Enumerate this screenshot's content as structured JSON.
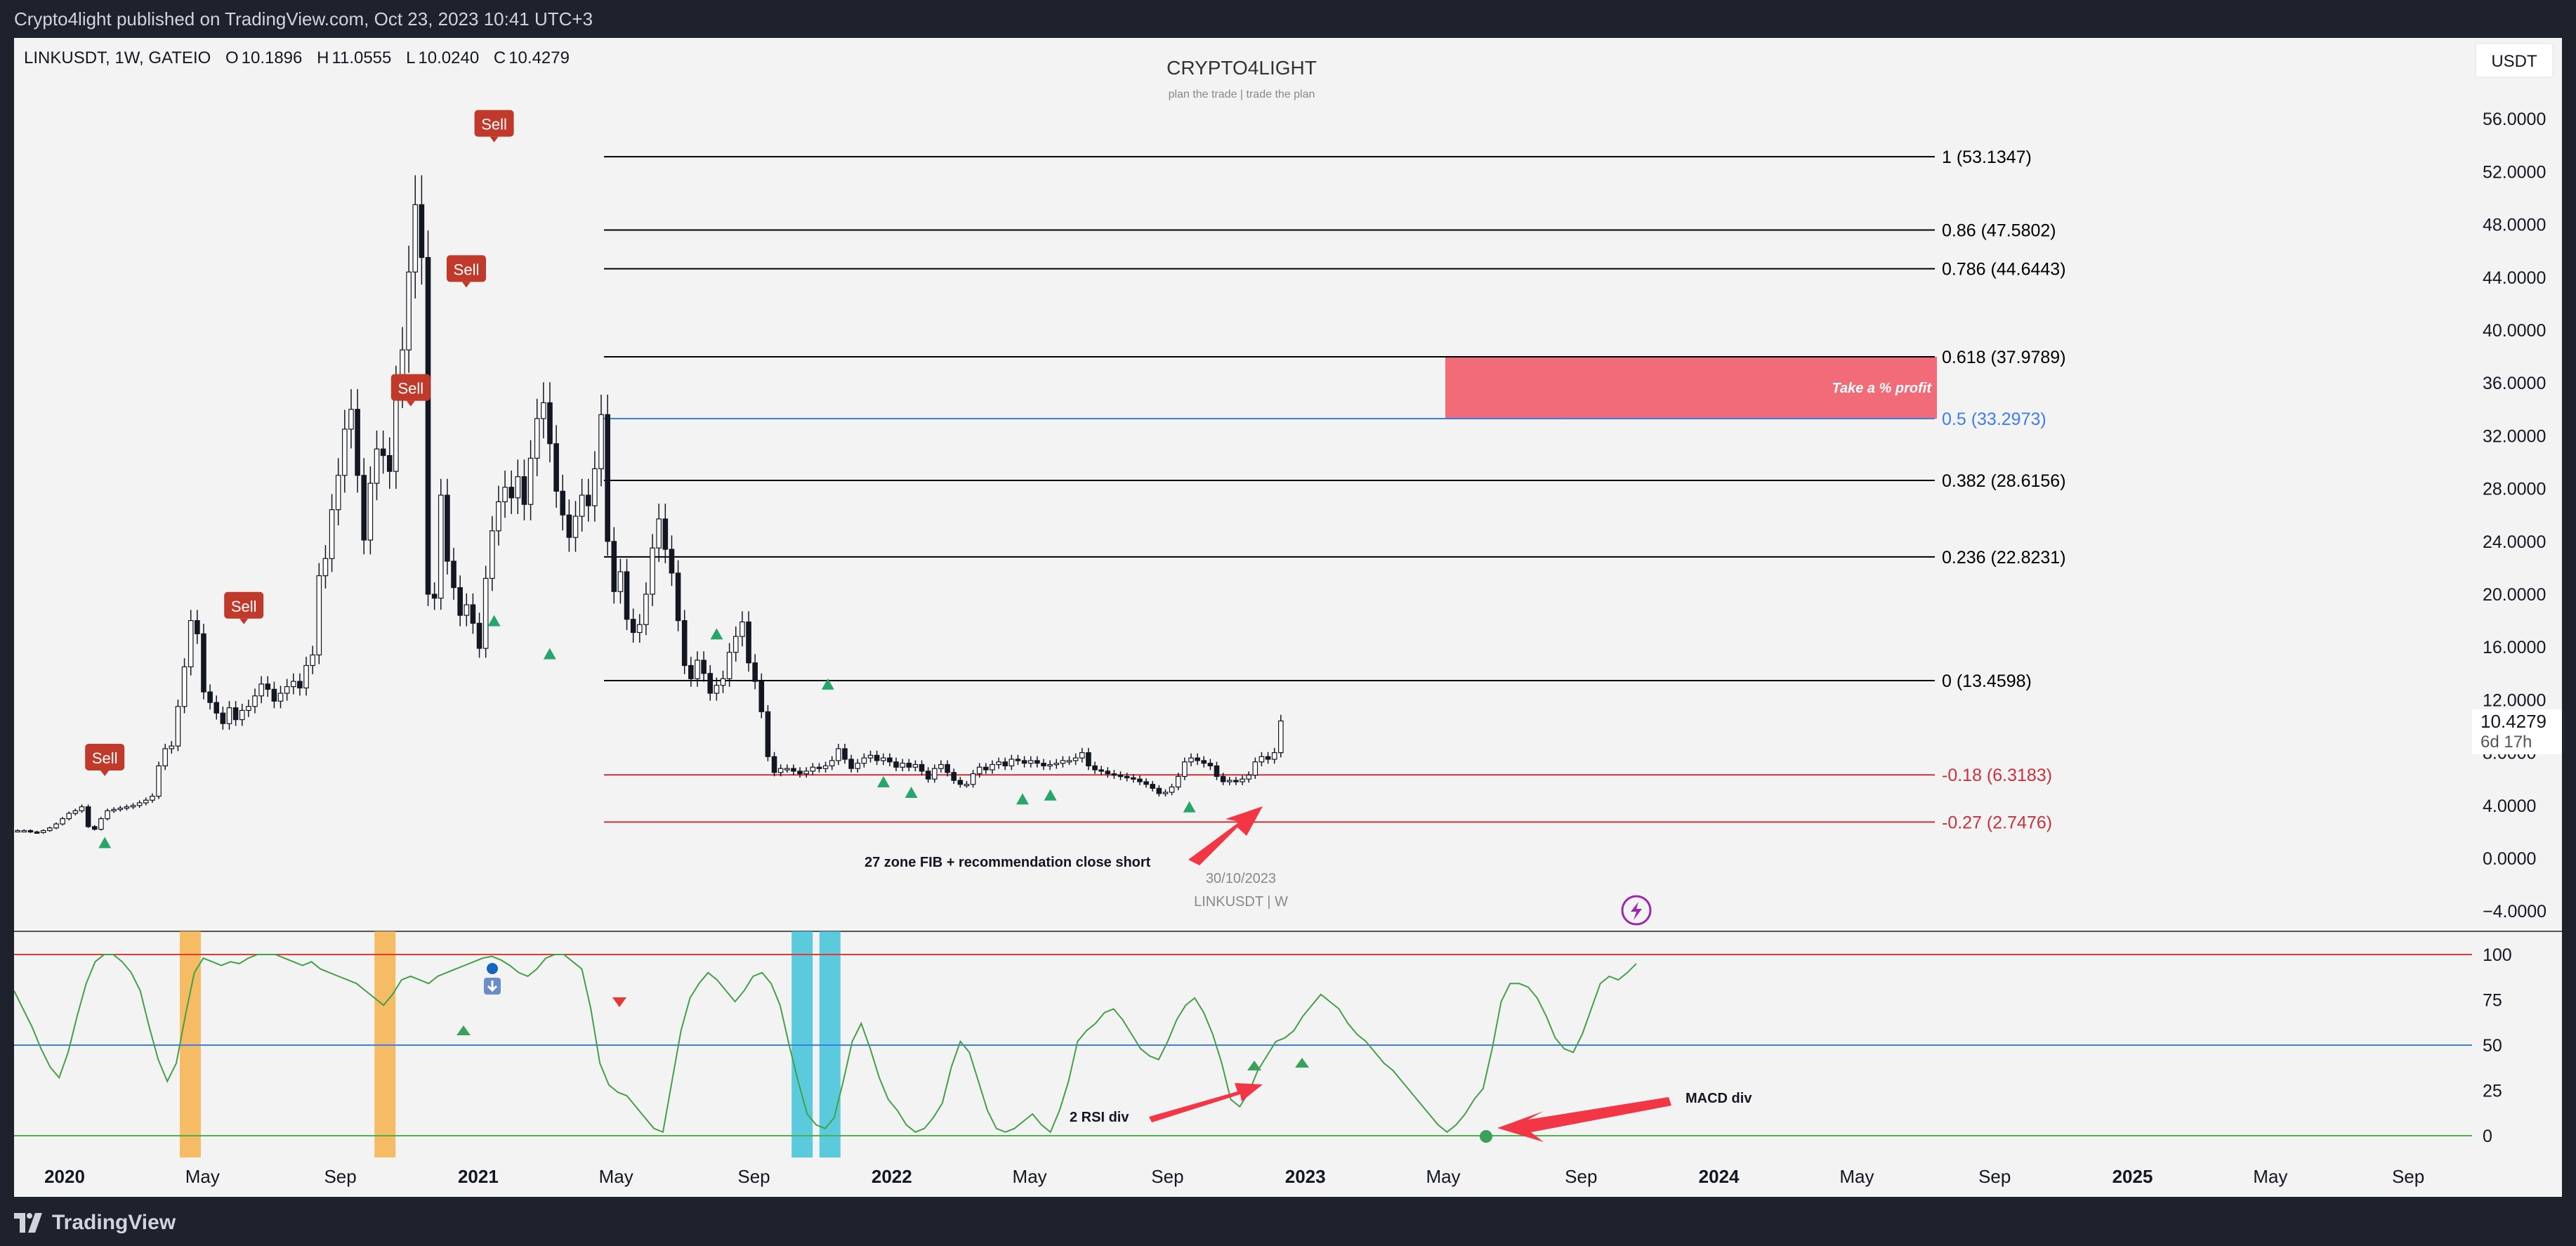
{
  "header": {
    "published": "Crypto4light published on TradingView.com, Oct 23, 2023 10:41 UTC+3"
  },
  "footer": {
    "brand": "TradingView"
  },
  "chart_data": [
    {
      "type": "candlestick",
      "symbol": "LINKUSDT, 1W, GATEIO",
      "ohlc": {
        "O_label": "O",
        "O": "10.1896",
        "H_label": "H",
        "H": "11.0555",
        "L_label": "L",
        "L": "10.0240",
        "C_label": "C",
        "C": "10.4279"
      },
      "title": "CRYPTO4LIGHT",
      "subtitle": "plan the trade | trade the plan",
      "currency_badge": "USDT",
      "y_ticks": [
        "56.0000",
        "52.0000",
        "48.0000",
        "44.0000",
        "40.0000",
        "36.0000",
        "32.0000",
        "28.0000",
        "24.0000",
        "20.0000",
        "16.0000",
        "12.0000",
        "8.0000",
        "4.0000",
        "0.0000",
        "−4.0000"
      ],
      "y_tick_values": [
        56,
        52,
        48,
        44,
        40,
        36,
        32,
        28,
        24,
        20,
        16,
        12,
        8,
        4,
        0,
        -4
      ],
      "last_price": "10.4279",
      "countdown": "6d 17h",
      "fib_levels": [
        {
          "label": "1 (53.1347)",
          "value": 53.1347,
          "color": "#000000"
        },
        {
          "label": "0.86 (47.5802)",
          "value": 47.5802,
          "color": "#000000"
        },
        {
          "label": "0.786 (44.6443)",
          "value": 44.6443,
          "color": "#000000"
        },
        {
          "label": "0.618 (37.9789)",
          "value": 37.9789,
          "color": "#000000"
        },
        {
          "label": "0.5 (33.2973)",
          "value": 33.2973,
          "color": "#3d7df0"
        },
        {
          "label": "0.382 (28.6156)",
          "value": 28.6156,
          "color": "#000000"
        },
        {
          "label": "0.236 (22.8231)",
          "value": 22.8231,
          "color": "#000000"
        },
        {
          "label": "0 (13.4598)",
          "value": 13.4598,
          "color": "#000000"
        },
        {
          "label": "-0.18 (6.3183)",
          "value": 6.3183,
          "color": "#c7323b"
        },
        {
          "label": "-0.27 (2.7476)",
          "value": 2.7476,
          "color": "#c7323b"
        }
      ],
      "profit_zone": {
        "label": "Take a % profit",
        "from": 33.2973,
        "to": 37.9789,
        "color": "#f26b78"
      },
      "annotations": {
        "fib_note": "27 zone FIB + recommendation close short",
        "date_label": "30/10/2023",
        "watermark": "LINKUSDT | W",
        "rsi_note": "2 RSI div",
        "macd_note": "MACD div"
      },
      "sell_label": "Sell",
      "sell_signals": [
        {
          "x": "2020-03",
          "price": 7.5
        },
        {
          "x": "2020-08",
          "price": 19.0
        },
        {
          "x": "2021-02",
          "price": 35.5
        },
        {
          "x": "2021-04",
          "price": 44.5
        },
        {
          "x": "2021-05",
          "price": 55.5
        }
      ],
      "buy_signals": [
        {
          "x": "2020-03",
          "price": 1.2
        },
        {
          "x": "2021-05",
          "price": 18.0
        },
        {
          "x": "2021-07",
          "price": 15.5
        },
        {
          "x": "2022-01",
          "price": 17.0
        },
        {
          "x": "2022-05",
          "price": 13.2
        },
        {
          "x": "2022-07",
          "price": 5.8
        },
        {
          "x": "2022-08",
          "price": 5.0
        },
        {
          "x": "2022-12",
          "price": 4.5
        },
        {
          "x": "2023-01",
          "price": 4.8
        },
        {
          "x": "2023-06",
          "price": 3.9
        }
      ],
      "weekly_close": [
        2.1,
        2.1,
        2.0,
        1.95,
        2.1,
        2.3,
        2.6,
        3.0,
        3.4,
        3.6,
        3.9,
        2.4,
        2.2,
        3.0,
        3.6,
        3.7,
        3.8,
        3.9,
        4.0,
        4.2,
        4.4,
        4.7,
        7.0,
        8.3,
        8.5,
        11.5,
        14.5,
        18.0,
        17.0,
        12.6,
        11.8,
        11.0,
        10.2,
        11.4,
        10.5,
        11.2,
        11.5,
        12.3,
        13.2,
        12.8,
        11.9,
        12.5,
        13.0,
        13.4,
        12.9,
        14.6,
        15.4,
        21.4,
        22.7,
        26.4,
        29.0,
        32.5,
        34.0,
        29.0,
        24.1,
        28.4,
        31.0,
        30.5,
        29.3,
        35.7,
        38.5,
        44.4,
        49.5,
        45.5,
        20.0,
        19.7,
        27.5,
        22.5,
        20.5,
        18.4,
        19.2,
        17.8,
        15.9,
        21.2,
        24.8,
        27.0,
        28.1,
        27.3,
        28.9,
        26.8,
        30.3,
        33.3,
        34.5,
        31.4,
        27.8,
        26.0,
        24.3,
        25.9,
        27.5,
        26.7,
        29.5,
        33.6,
        24.0,
        20.2,
        21.7,
        18.1,
        17.1,
        17.7,
        20.0,
        23.5,
        25.7,
        23.4,
        21.6,
        18.0,
        14.6,
        13.6,
        15.0,
        14.0,
        12.5,
        13.1,
        13.6,
        15.6,
        16.8,
        17.9,
        14.8,
        13.4,
        11.1,
        7.7,
        6.5,
        6.8,
        6.8,
        6.6,
        6.4,
        6.6,
        6.9,
        6.8,
        7.0,
        7.4,
        8.3,
        7.5,
        6.8,
        7.2,
        7.6,
        7.8,
        7.4,
        7.6,
        7.3,
        6.9,
        7.2,
        6.9,
        7.1,
        6.6,
        6.0,
        6.8,
        7.1,
        6.5,
        5.9,
        5.6,
        5.6,
        6.4,
        6.9,
        6.7,
        7.1,
        7.3,
        7.0,
        7.5,
        7.4,
        7.2,
        7.4,
        7.2,
        7.0,
        7.1,
        7.2,
        7.4,
        7.4,
        7.6,
        8.0,
        7.0,
        6.7,
        6.6,
        6.4,
        6.3,
        6.2,
        6.1,
        6.0,
        5.8,
        5.6,
        5.3,
        4.9,
        5.0,
        5.4,
        6.2,
        7.3,
        7.6,
        7.4,
        7.2,
        7.0,
        6.2,
        5.8,
        5.9,
        5.8,
        6.0,
        6.3,
        7.3,
        7.7,
        7.5,
        8.0,
        10.4
      ],
      "x_ticks": [
        "2020",
        "May",
        "Sep",
        "2021",
        "May",
        "Sep",
        "2022",
        "May",
        "Sep",
        "2023",
        "May",
        "Sep",
        "2024",
        "May",
        "Sep",
        "2025",
        "May",
        "Sep"
      ]
    },
    {
      "type": "line",
      "indicator": "oscillator",
      "y_ticks": [
        "100",
        "75",
        "50",
        "25",
        "0"
      ],
      "y_tick_values": [
        100,
        75,
        50,
        25,
        0
      ],
      "levels": [
        {
          "value": 100,
          "color": "#e53935"
        },
        {
          "value": 50,
          "color": "#3d7df0"
        },
        {
          "value": 0,
          "color": "#4caf50"
        }
      ],
      "highlight_bands": [
        {
          "x": "2020-06",
          "color": "#f6b24b"
        },
        {
          "x": "2021-01",
          "color": "#f6b24b"
        },
        {
          "x": "2022-04",
          "color": "#3fc2d8"
        },
        {
          "x": "2022-05",
          "color": "#3fc2d8"
        }
      ],
      "values": [
        80,
        70,
        60,
        48,
        38,
        32,
        46,
        66,
        84,
        96,
        100,
        100,
        96,
        90,
        80,
        60,
        42,
        30,
        40,
        66,
        90,
        98,
        96,
        94,
        96,
        95,
        98,
        100,
        100,
        100,
        98,
        96,
        94,
        96,
        92,
        90,
        88,
        86,
        84,
        80,
        76,
        72,
        78,
        86,
        88,
        86,
        84,
        88,
        90,
        92,
        94,
        96,
        98,
        99,
        97,
        94,
        90,
        88,
        92,
        98,
        100,
        100,
        96,
        92,
        70,
        40,
        28,
        24,
        22,
        16,
        10,
        4,
        2,
        30,
        58,
        76,
        84,
        90,
        86,
        80,
        74,
        80,
        88,
        90,
        84,
        72,
        50,
        30,
        12,
        6,
        4,
        10,
        30,
        52,
        62,
        48,
        32,
        20,
        14,
        6,
        2,
        4,
        10,
        18,
        38,
        52,
        46,
        30,
        14,
        4,
        2,
        4,
        8,
        12,
        6,
        2,
        14,
        30,
        52,
        58,
        62,
        68,
        70,
        64,
        56,
        48,
        44,
        42,
        52,
        64,
        72,
        76,
        68,
        56,
        40,
        20,
        16,
        24,
        36,
        44,
        52,
        54,
        58,
        66,
        72,
        78,
        74,
        70,
        62,
        56,
        52,
        46,
        40,
        36,
        30,
        24,
        18,
        12,
        6,
        2,
        6,
        12,
        20,
        26,
        48,
        74,
        84,
        84,
        82,
        76,
        66,
        54,
        48,
        46,
        56,
        70,
        84,
        88,
        86,
        90,
        95
      ]
    }
  ]
}
